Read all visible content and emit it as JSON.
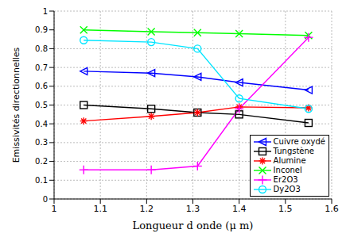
{
  "chart_data": {
    "type": "line",
    "x_label": "Longueur d onde (μ m)",
    "y_label": "Emissivités directionnelles",
    "x": [
      1.064,
      1.21,
      1.31,
      1.4,
      1.55
    ],
    "series": [
      {
        "name": "Cuivre oxydé",
        "color": "#0000ff",
        "marker": "triangle-left",
        "line_style": "solid",
        "values": [
          0.68,
          0.67,
          0.65,
          0.62,
          0.58
        ]
      },
      {
        "name": "Tungstène",
        "color": "#000000",
        "marker": "square",
        "line_style": "solid",
        "values": [
          0.5,
          0.48,
          0.46,
          0.45,
          0.405
        ]
      },
      {
        "name": "Alumine",
        "color": "#ff0000",
        "marker": "star",
        "line_style": "solid",
        "values": [
          0.415,
          0.44,
          0.46,
          0.49,
          0.485
        ]
      },
      {
        "name": "Inconel",
        "color": "#00ff00",
        "marker": "x",
        "line_style": "solid",
        "values": [
          0.9,
          0.89,
          0.885,
          0.88,
          0.87
        ]
      },
      {
        "name": "Er2O3",
        "color": "#ff00ff",
        "marker": "plus",
        "line_style": "solid",
        "values": [
          0.155,
          0.155,
          0.175,
          0.48,
          0.86
        ]
      },
      {
        "name": "Dy2O3",
        "color": "#00e5ff",
        "marker": "circle",
        "line_style": "solid",
        "values": [
          0.845,
          0.835,
          0.8,
          0.535,
          0.48
        ]
      }
    ],
    "xlim": [
      1,
      1.6
    ],
    "xticks": [
      1,
      1.1,
      1.2,
      1.3,
      1.4,
      1.5,
      1.6
    ],
    "ylim": [
      0,
      1
    ],
    "yticks": [
      0,
      0.1,
      0.2,
      0.3,
      0.4,
      0.5,
      0.6,
      0.7,
      0.8,
      0.9,
      1
    ],
    "grid": true,
    "legend": "lower right"
  }
}
